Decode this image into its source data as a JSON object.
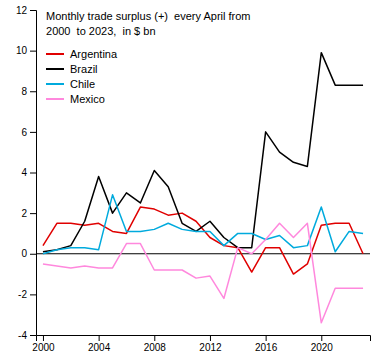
{
  "chart_data": {
    "type": "line",
    "title": "Monthly trade surplus (+)  every April from",
    "subtitle": "2000  to 2023,  in $ bn",
    "x": [
      2000,
      2001,
      2002,
      2003,
      2004,
      2005,
      2006,
      2007,
      2008,
      2009,
      2010,
      2011,
      2012,
      2013,
      2014,
      2015,
      2016,
      2017,
      2018,
      2019,
      2020,
      2021,
      2022,
      2023
    ],
    "series": [
      {
        "name": "Argentina",
        "color": "#e00000",
        "values": [
          0.4,
          1.5,
          1.5,
          1.4,
          1.5,
          1.1,
          1.0,
          2.3,
          2.2,
          1.9,
          2.0,
          1.6,
          0.8,
          0.4,
          0.3,
          -0.9,
          0.3,
          0.3,
          -1.0,
          -0.5,
          1.4,
          1.5,
          1.5,
          0.0
        ]
      },
      {
        "name": "Brazil",
        "color": "#000000",
        "values": [
          0.1,
          0.2,
          0.4,
          1.6,
          3.8,
          2.0,
          3.0,
          2.5,
          4.1,
          3.3,
          1.5,
          1.1,
          1.6,
          0.8,
          0.3,
          0.3,
          6.0,
          5.0,
          4.5,
          4.3,
          9.9,
          8.3,
          8.3,
          8.3
        ]
      },
      {
        "name": "Chile",
        "color": "#00aadd",
        "values": [
          0.0,
          0.2,
          0.3,
          0.3,
          0.2,
          2.9,
          1.1,
          1.1,
          1.2,
          1.5,
          1.2,
          1.1,
          1.1,
          0.4,
          1.0,
          1.0,
          0.7,
          0.9,
          0.3,
          0.4,
          2.3,
          0.1,
          1.1,
          1.0
        ]
      },
      {
        "name": "Mexico",
        "color": "#ff88dd",
        "values": [
          -0.5,
          -0.6,
          -0.7,
          -0.6,
          -0.7,
          -0.7,
          0.5,
          0.5,
          -0.8,
          -0.8,
          -0.8,
          -1.2,
          -1.1,
          -2.2,
          0.3,
          0.0,
          0.7,
          1.5,
          0.8,
          1.5,
          -3.4,
          -1.7,
          -1.7,
          -1.7
        ]
      }
    ],
    "xlim": [
      1999.5,
      2023.5
    ],
    "xticks": [
      2000,
      2004,
      2008,
      2012,
      2016,
      2020
    ],
    "ylim": [
      -4,
      12
    ],
    "yticks": [
      -4,
      -2,
      0,
      2,
      4,
      6,
      8,
      10,
      12
    ],
    "grid": false,
    "legend": "upper left"
  }
}
